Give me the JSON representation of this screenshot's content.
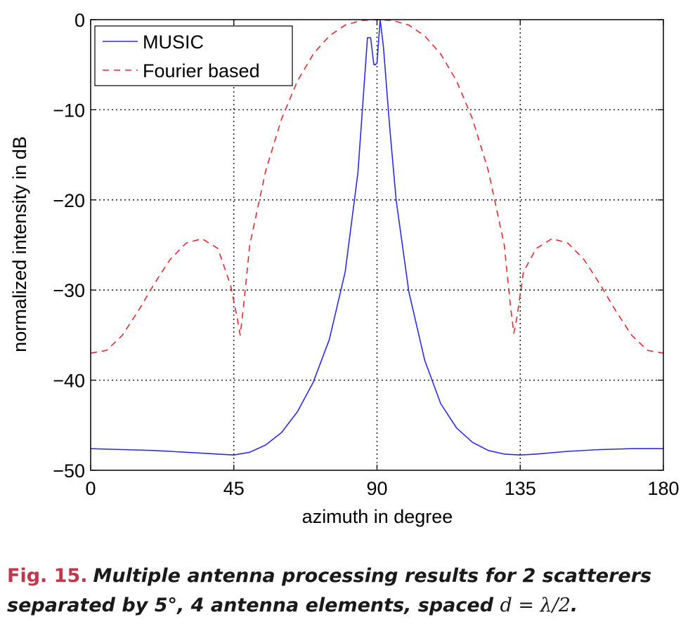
{
  "chart_data": {
    "type": "line",
    "title": "",
    "xlabel": "azimuth in degree",
    "ylabel": "normalized intensity in dB",
    "xlim": [
      0,
      180
    ],
    "ylim": [
      -50,
      0
    ],
    "xticks": [
      0,
      45,
      90,
      135,
      180
    ],
    "yticks": [
      0,
      -10,
      -20,
      -30,
      -40,
      -50
    ],
    "xtick_labels": [
      "0",
      "45",
      "90",
      "135",
      "180"
    ],
    "ytick_labels": [
      "0",
      "−10",
      "−20",
      "−30",
      "−40",
      "−50"
    ],
    "grid": true,
    "legend_position": "top-left",
    "series": [
      {
        "name": "MUSIC",
        "color": "#2a2aff",
        "style": "solid",
        "x": [
          0,
          10,
          20,
          30,
          40,
          45,
          50,
          55,
          60,
          65,
          70,
          75,
          80,
          84,
          86,
          87,
          88,
          89,
          89.5,
          90,
          91,
          92,
          93,
          94,
          96,
          100,
          105,
          110,
          115,
          120,
          125,
          130,
          135,
          140,
          150,
          160,
          170,
          180
        ],
        "values": [
          -47.6,
          -47.7,
          -47.8,
          -48.0,
          -48.2,
          -48.3,
          -48.0,
          -47.2,
          -45.8,
          -43.5,
          -40.2,
          -35.5,
          -28.0,
          -17.0,
          -7.0,
          -2.0,
          -2.0,
          -5.0,
          -5.0,
          -4.8,
          0,
          -3.0,
          -7.5,
          -12.0,
          -20.0,
          -30.2,
          -37.8,
          -42.6,
          -45.3,
          -46.9,
          -47.8,
          -48.2,
          -48.3,
          -48.2,
          -47.9,
          -47.7,
          -47.6,
          -47.6
        ]
      },
      {
        "name": "Fourier based",
        "color": "#e8282f",
        "style": "dashed",
        "x": [
          0,
          5,
          10,
          15,
          20,
          25,
          30,
          35,
          40,
          44,
          46,
          47,
          48,
          50,
          55,
          60,
          65,
          70,
          75,
          80,
          85,
          90,
          95,
          100,
          105,
          110,
          115,
          120,
          125,
          130,
          132,
          133,
          134,
          136,
          140,
          145,
          150,
          155,
          160,
          165,
          170,
          175,
          180
        ],
        "values": [
          -37.0,
          -36.7,
          -35.0,
          -32.3,
          -29.3,
          -26.6,
          -24.8,
          -24.3,
          -25.4,
          -29.5,
          -33.0,
          -35.0,
          -32.0,
          -25.0,
          -16.8,
          -11.0,
          -6.8,
          -3.8,
          -1.8,
          -0.6,
          -0.1,
          0,
          -0.1,
          -0.6,
          -1.8,
          -3.8,
          -6.8,
          -11.0,
          -16.8,
          -25.0,
          -32.0,
          -34.8,
          -33.0,
          -28.0,
          -25.4,
          -24.3,
          -24.8,
          -26.6,
          -29.3,
          -32.3,
          -35.0,
          -36.7,
          -37.0
        ]
      }
    ]
  },
  "caption": {
    "fig_number": "Fig. 15.",
    "text_main": "Multiple antenna processing results for 2 scatterers separated by 5°, 4 antenna elements, spaced",
    "math": "d = λ/2",
    "end": "."
  }
}
